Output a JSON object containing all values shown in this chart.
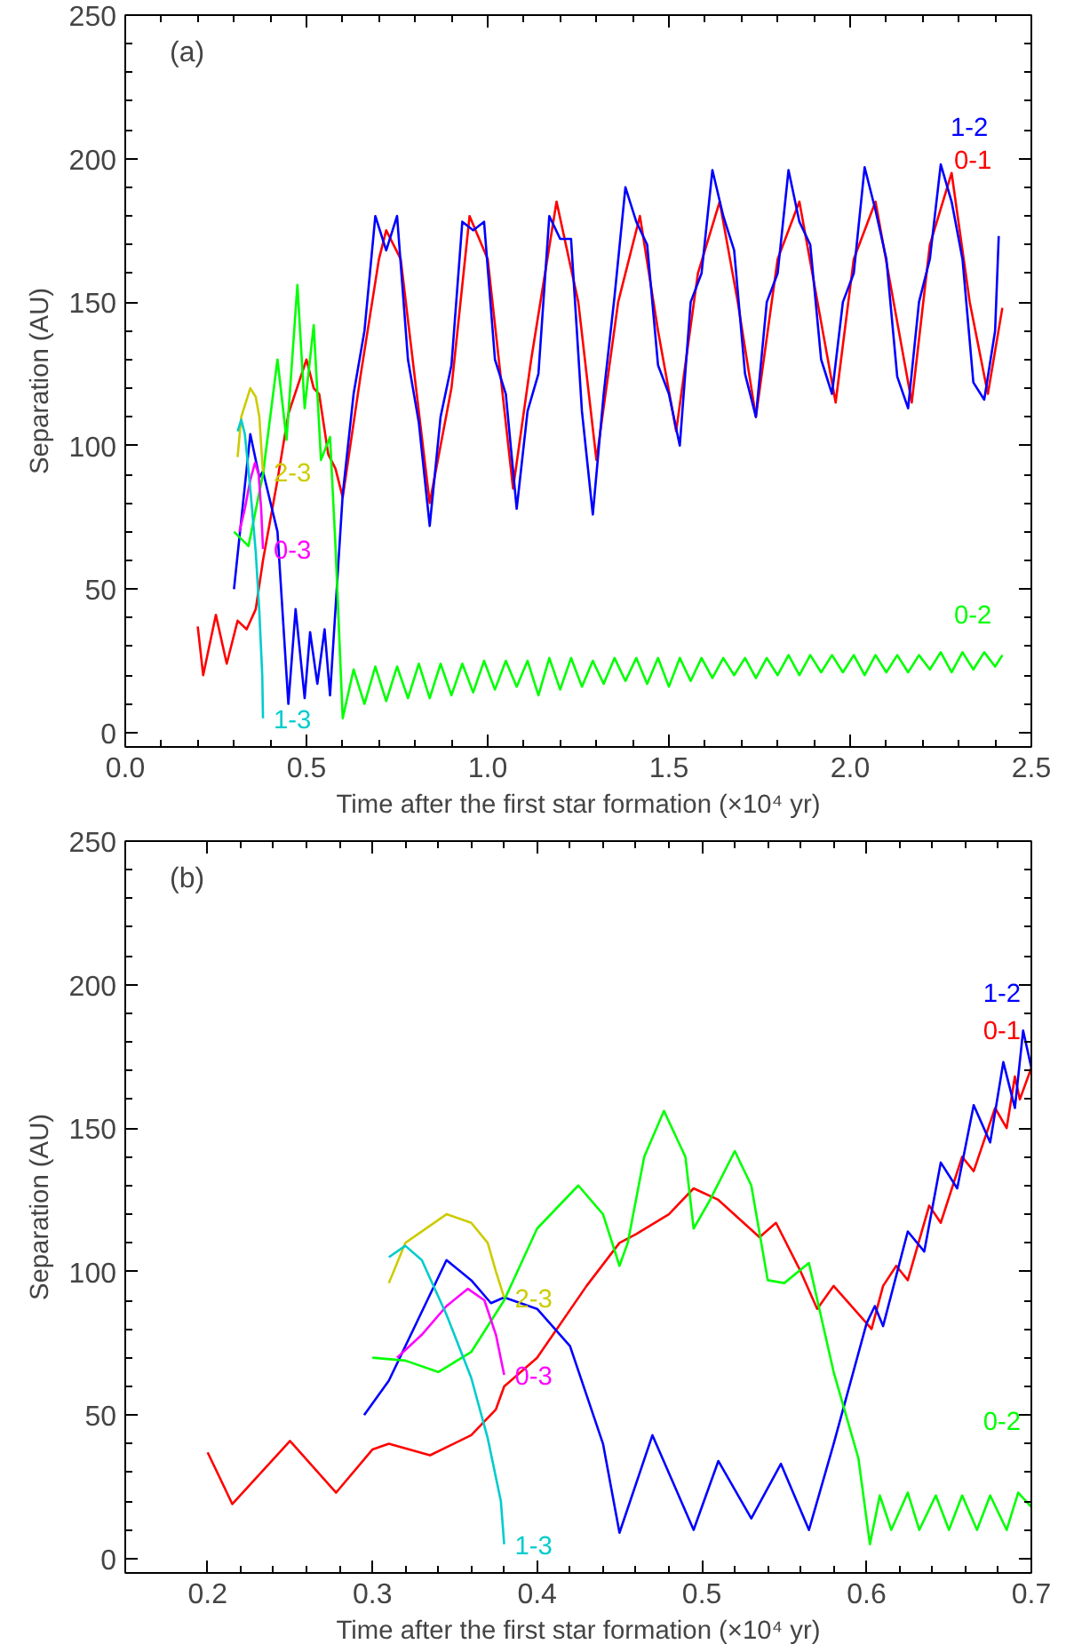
{
  "chart_data": [
    {
      "type": "line",
      "annotations": [
        "(a)"
      ],
      "xlabel": "Time after the first star formation (×10⁴ yr)",
      "ylabel": "Separation (AU)",
      "xlim": [
        0.0,
        2.5
      ],
      "ylim": [
        -5,
        250
      ],
      "xticks": [
        {
          "value": 0.0,
          "label": "0.0"
        },
        0.5,
        {
          "value": 1.0,
          "label": "1.0"
        },
        1.5,
        {
          "value": 2.0,
          "label": "2.0"
        },
        2.5
      ],
      "yticks": [
        0,
        50,
        100,
        150,
        200,
        250
      ],
      "grid": false,
      "series": [
        {
          "name": "0-1",
          "color": "#ff0000",
          "x": [
            0.2,
            0.215,
            0.25,
            0.28,
            0.31,
            0.335,
            0.36,
            0.38,
            0.42,
            0.45,
            0.5,
            0.52,
            0.535,
            0.56,
            0.58,
            0.6,
            0.65,
            0.7,
            0.72,
            0.76,
            0.84,
            0.9,
            0.95,
            1.0,
            1.07,
            1.12,
            1.19,
            1.25,
            1.3,
            1.36,
            1.42,
            1.47,
            1.52,
            1.58,
            1.64,
            1.69,
            1.74,
            1.8,
            1.86,
            1.91,
            1.96,
            2.01,
            2.07,
            2.12,
            2.17,
            2.22,
            2.28,
            2.33,
            2.38,
            2.42
          ],
          "values": [
            37,
            20,
            41,
            24,
            39,
            36,
            43,
            60,
            88,
            111,
            130,
            120,
            118,
            97,
            92,
            82,
            125,
            165,
            175,
            165,
            80,
            120,
            180,
            165,
            85,
            130,
            185,
            150,
            95,
            150,
            180,
            140,
            105,
            160,
            185,
            150,
            110,
            165,
            185,
            150,
            115,
            165,
            185,
            150,
            115,
            170,
            195,
            150,
            118,
            148
          ]
        },
        {
          "name": "1-2",
          "color": "#0000ff",
          "x": [
            0.3,
            0.345,
            0.37,
            0.38,
            0.42,
            0.45,
            0.47,
            0.495,
            0.51,
            0.53,
            0.55,
            0.565,
            0.6,
            0.63,
            0.66,
            0.69,
            0.72,
            0.75,
            0.78,
            0.81,
            0.84,
            0.87,
            0.9,
            0.93,
            0.96,
            0.99,
            1.02,
            1.05,
            1.08,
            1.11,
            1.14,
            1.17,
            1.2,
            1.23,
            1.26,
            1.29,
            1.32,
            1.35,
            1.38,
            1.41,
            1.44,
            1.47,
            1.5,
            1.53,
            1.56,
            1.59,
            1.62,
            1.65,
            1.68,
            1.71,
            1.74,
            1.77,
            1.8,
            1.83,
            1.86,
            1.89,
            1.92,
            1.95,
            1.98,
            2.01,
            2.04,
            2.07,
            2.1,
            2.13,
            2.16,
            2.19,
            2.22,
            2.25,
            2.28,
            2.31,
            2.34,
            2.37,
            2.4,
            2.41
          ],
          "values": [
            50,
            104,
            89,
            91,
            70,
            10,
            43,
            12,
            35,
            17,
            36,
            13,
            83,
            118,
            140,
            180,
            168,
            180,
            130,
            108,
            72,
            110,
            128,
            178,
            175,
            178,
            130,
            118,
            78,
            112,
            125,
            180,
            172,
            172,
            112,
            76,
            118,
            152,
            190,
            178,
            170,
            128,
            118,
            100,
            150,
            160,
            196,
            180,
            168,
            125,
            110,
            150,
            160,
            196,
            178,
            170,
            130,
            118,
            150,
            160,
            197,
            182,
            165,
            124,
            113,
            150,
            165,
            198,
            185,
            165,
            122,
            116,
            140,
            173
          ]
        },
        {
          "name": "0-2",
          "color": "#00ff00",
          "x": [
            0.3,
            0.34,
            0.38,
            0.42,
            0.445,
            0.475,
            0.495,
            0.52,
            0.54,
            0.565,
            0.58,
            0.6,
            0.63,
            0.66,
            0.69,
            0.72,
            0.75,
            0.78,
            0.81,
            0.84,
            0.87,
            0.9,
            0.93,
            0.96,
            0.99,
            1.02,
            1.05,
            1.08,
            1.11,
            1.14,
            1.17,
            1.2,
            1.23,
            1.26,
            1.29,
            1.32,
            1.35,
            1.38,
            1.41,
            1.44,
            1.47,
            1.5,
            1.53,
            1.56,
            1.59,
            1.62,
            1.65,
            1.68,
            1.71,
            1.74,
            1.77,
            1.8,
            1.83,
            1.86,
            1.89,
            1.92,
            1.95,
            1.98,
            2.01,
            2.04,
            2.07,
            2.1,
            2.13,
            2.16,
            2.19,
            2.22,
            2.25,
            2.28,
            2.31,
            2.34,
            2.37,
            2.4,
            2.42
          ],
          "values": [
            70,
            65,
            90,
            130,
            102,
            156,
            113,
            142,
            95,
            103,
            65,
            5,
            22,
            10,
            23,
            11,
            23,
            12,
            24,
            12,
            24,
            13,
            24,
            14,
            25,
            15,
            25,
            16,
            25,
            13,
            26,
            15,
            26,
            16,
            25,
            17,
            26,
            18,
            26,
            17,
            26,
            16,
            26,
            18,
            26,
            19,
            26,
            20,
            26,
            19,
            26,
            20,
            27,
            20,
            27,
            21,
            27,
            21,
            27,
            20,
            27,
            21,
            27,
            21,
            27,
            22,
            28,
            21,
            28,
            22,
            28,
            23,
            27
          ]
        },
        {
          "name": "2-3",
          "color": "#cccc00",
          "x": [
            0.31,
            0.32,
            0.345,
            0.36,
            0.37,
            0.375,
            0.38
          ],
          "values": [
            96,
            110,
            120,
            117,
            110,
            100,
            91
          ]
        },
        {
          "name": "0-3",
          "color": "#ff00ff",
          "x": [
            0.315,
            0.33,
            0.345,
            0.358,
            0.368,
            0.375,
            0.38
          ],
          "values": [
            70,
            78,
            88,
            94,
            90,
            78,
            64
          ]
        },
        {
          "name": "1-3",
          "color": "#00cccc",
          "x": [
            0.31,
            0.32,
            0.33,
            0.345,
            0.36,
            0.37,
            0.378,
            0.38
          ],
          "values": [
            105,
            109,
            104,
            85,
            63,
            42,
            20,
            5
          ]
        }
      ]
    },
    {
      "type": "line",
      "annotations": [
        "(b)"
      ],
      "xlabel": "Time after the first star formation (×10⁴ yr)",
      "ylabel": "Separation (AU)",
      "xlim": [
        0.15,
        0.7
      ],
      "ylim": [
        -5,
        250
      ],
      "xticks": [
        0.2,
        0.3,
        0.4,
        0.5,
        0.6,
        0.7
      ],
      "yticks": [
        0,
        50,
        100,
        150,
        200,
        250
      ],
      "grid": false,
      "series": [
        {
          "name": "0-1",
          "color": "#ff0000",
          "x": [
            0.2,
            0.215,
            0.25,
            0.278,
            0.3,
            0.31,
            0.335,
            0.36,
            0.375,
            0.38,
            0.4,
            0.43,
            0.45,
            0.46,
            0.48,
            0.495,
            0.51,
            0.535,
            0.545,
            0.56,
            0.57,
            0.58,
            0.6,
            0.603,
            0.61,
            0.618,
            0.625,
            0.638,
            0.645,
            0.658,
            0.665,
            0.678,
            0.685,
            0.69,
            0.693,
            0.7
          ],
          "values": [
            37,
            19,
            41,
            23,
            38,
            40,
            36,
            43,
            52,
            60,
            70,
            95,
            110,
            113,
            120,
            129,
            125,
            112,
            117,
            100,
            87,
            95,
            82,
            80,
            95,
            102,
            97,
            123,
            117,
            140,
            135,
            157,
            150,
            168,
            160,
            171
          ]
        },
        {
          "name": "1-2",
          "color": "#0000ff",
          "x": [
            0.295,
            0.31,
            0.345,
            0.36,
            0.372,
            0.38,
            0.4,
            0.42,
            0.44,
            0.45,
            0.47,
            0.495,
            0.51,
            0.53,
            0.548,
            0.565,
            0.58,
            0.6,
            0.605,
            0.61,
            0.625,
            0.635,
            0.645,
            0.655,
            0.665,
            0.675,
            0.683,
            0.69,
            0.695,
            0.7
          ],
          "values": [
            50,
            62,
            104,
            97,
            89,
            91,
            87,
            74,
            40,
            9,
            43,
            10,
            34,
            14,
            33,
            10,
            40,
            82,
            88,
            81,
            114,
            107,
            138,
            129,
            158,
            145,
            173,
            157,
            184,
            171
          ]
        },
        {
          "name": "0-2",
          "color": "#00ff00",
          "x": [
            0.3,
            0.32,
            0.34,
            0.36,
            0.38,
            0.4,
            0.425,
            0.44,
            0.45,
            0.455,
            0.465,
            0.477,
            0.49,
            0.495,
            0.505,
            0.52,
            0.53,
            0.54,
            0.55,
            0.565,
            0.58,
            0.595,
            0.602,
            0.608,
            0.615,
            0.625,
            0.632,
            0.642,
            0.65,
            0.658,
            0.667,
            0.675,
            0.685,
            0.692,
            0.7
          ],
          "values": [
            70,
            69,
            65,
            72,
            90,
            115,
            130,
            120,
            102,
            110,
            140,
            156,
            140,
            115,
            125,
            142,
            130,
            97,
            96,
            103,
            65,
            35,
            5,
            22,
            10,
            23,
            10,
            22,
            10,
            22,
            10,
            22,
            10,
            23,
            18
          ]
        },
        {
          "name": "2-3",
          "color": "#cccc00",
          "x": [
            0.31,
            0.32,
            0.345,
            0.36,
            0.37,
            0.375,
            0.38
          ],
          "values": [
            96,
            110,
            120,
            117,
            110,
            100,
            91
          ]
        },
        {
          "name": "0-3",
          "color": "#ff00ff",
          "x": [
            0.315,
            0.33,
            0.345,
            0.358,
            0.368,
            0.375,
            0.38
          ],
          "values": [
            70,
            78,
            88,
            94,
            90,
            78,
            64
          ]
        },
        {
          "name": "1-3",
          "color": "#00cccc",
          "x": [
            0.31,
            0.32,
            0.33,
            0.345,
            0.36,
            0.37,
            0.378,
            0.38
          ],
          "values": [
            105,
            109,
            104,
            85,
            63,
            42,
            20,
            5
          ]
        }
      ]
    }
  ]
}
